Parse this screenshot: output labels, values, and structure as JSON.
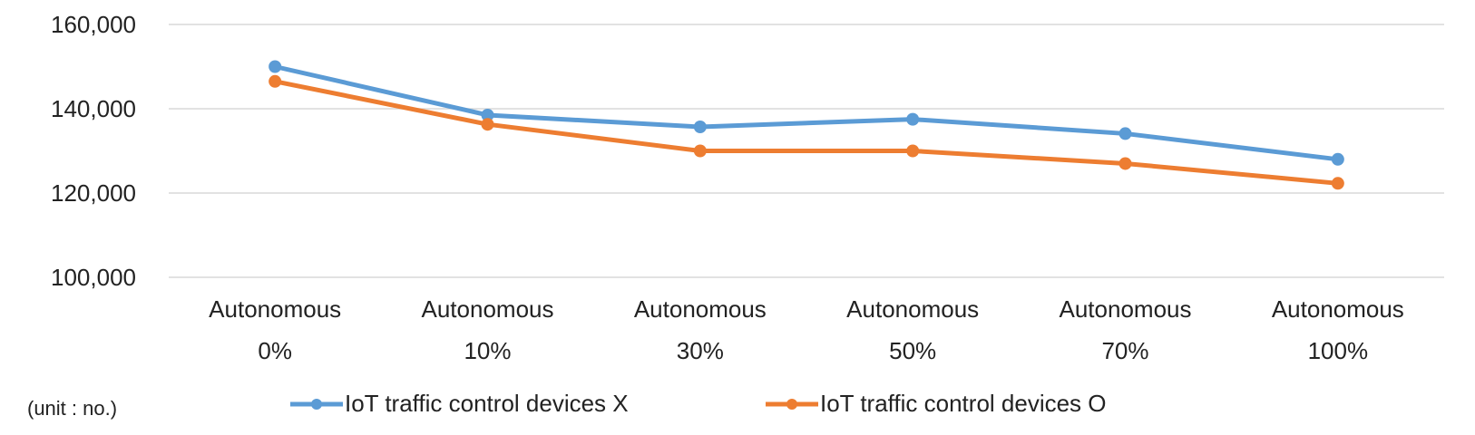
{
  "chart_data": {
    "type": "line",
    "categories": [
      [
        "Autonomous",
        "0%"
      ],
      [
        "Autonomous",
        "10%"
      ],
      [
        "Autonomous",
        "30%"
      ],
      [
        "Autonomous",
        "50%"
      ],
      [
        "Autonomous",
        "70%"
      ],
      [
        "Autonomous",
        "100%"
      ]
    ],
    "series": [
      {
        "name": "IoT traffic control devices X",
        "color": "#5b9bd5",
        "values": [
          150000,
          138500,
          135700,
          137500,
          134100,
          128000
        ]
      },
      {
        "name": "IoT traffic control devices O",
        "color": "#ed7d31",
        "values": [
          146500,
          136300,
          130000,
          130000,
          127000,
          122300
        ]
      }
    ],
    "ylim": [
      100000,
      160000
    ],
    "yticks": [
      100000,
      120000,
      140000,
      160000
    ],
    "ytick_labels": [
      "100,000",
      "120,000",
      "140,000",
      "160,000"
    ],
    "grid": true,
    "legend_position": "bottom",
    "unit_note": "(unit : no.)"
  }
}
